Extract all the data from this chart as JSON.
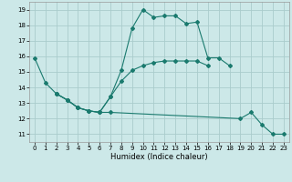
{
  "title": "",
  "xlabel": "Humidex (Indice chaleur)",
  "ylabel": "",
  "background_color": "#cce8e8",
  "grid_color": "#aacccc",
  "line_color": "#1a7a6e",
  "xlim": [
    -0.5,
    23.5
  ],
  "ylim": [
    10.5,
    19.5
  ],
  "xticks": [
    0,
    1,
    2,
    3,
    4,
    5,
    6,
    7,
    8,
    9,
    10,
    11,
    12,
    13,
    14,
    15,
    16,
    17,
    18,
    19,
    20,
    21,
    22,
    23
  ],
  "yticks": [
    11,
    12,
    13,
    14,
    15,
    16,
    17,
    18,
    19
  ],
  "series": [
    {
      "x": [
        0,
        1,
        2,
        3,
        4,
        5,
        6,
        7,
        8,
        9,
        10,
        11,
        12,
        13,
        14,
        15,
        16,
        17,
        18
      ],
      "y": [
        15.9,
        14.3,
        13.6,
        13.2,
        12.7,
        12.5,
        12.4,
        13.4,
        15.1,
        17.8,
        19.0,
        18.5,
        18.6,
        18.6,
        18.1,
        18.2,
        15.9,
        15.9,
        15.4
      ]
    },
    {
      "x": [
        2,
        3,
        4,
        5,
        6,
        7,
        8,
        9,
        10,
        11,
        12,
        13,
        14,
        15,
        16
      ],
      "y": [
        13.6,
        13.2,
        12.7,
        12.5,
        12.4,
        13.4,
        14.4,
        15.1,
        15.4,
        15.6,
        15.7,
        15.7,
        15.7,
        15.7,
        15.4
      ]
    },
    {
      "x": [
        2,
        3,
        4,
        5,
        6,
        7,
        19,
        20,
        21,
        22,
        23
      ],
      "y": [
        13.6,
        13.2,
        12.7,
        12.5,
        12.4,
        12.4,
        12.0,
        12.4,
        11.6,
        11.0,
        11.0
      ]
    }
  ]
}
